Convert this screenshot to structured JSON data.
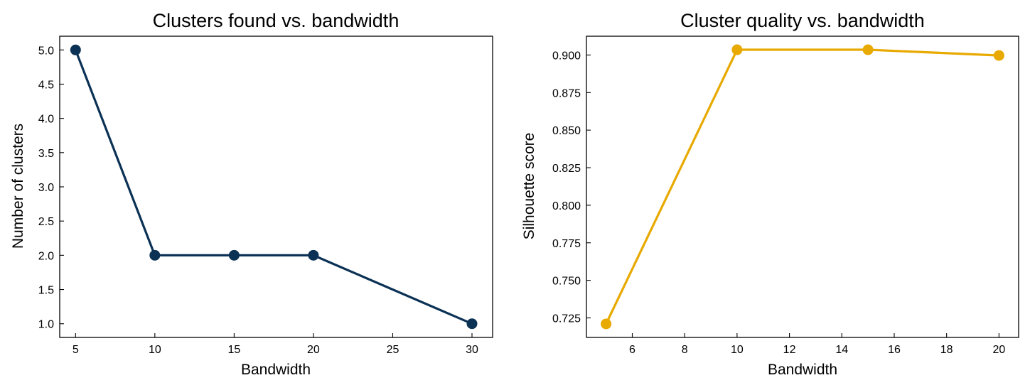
{
  "chart_data": [
    {
      "type": "line",
      "title": "Clusters found vs. bandwidth",
      "xlabel": "Bandwidth",
      "ylabel": "Number of clusters",
      "x": [
        5,
        10,
        15,
        20,
        30
      ],
      "series": [
        {
          "values": [
            5,
            2,
            2,
            2,
            1
          ],
          "color": "#0b3154",
          "marker": "circle"
        }
      ],
      "xlim": [
        4,
        31.3
      ],
      "ylim": [
        0.8,
        5.2
      ],
      "xticks": [
        5,
        10,
        15,
        20,
        25,
        30
      ],
      "xtick_labels": [
        "5",
        "10",
        "15",
        "20",
        "25",
        "30"
      ],
      "yticks": [
        1.0,
        1.5,
        2.0,
        2.5,
        3.0,
        3.5,
        4.0,
        4.5,
        5.0
      ],
      "ytick_labels": [
        "1.0",
        "1.5",
        "2.0",
        "2.5",
        "3.0",
        "3.5",
        "4.0",
        "4.5",
        "5.0"
      ],
      "grid": false,
      "legend": "none"
    },
    {
      "type": "line",
      "title": "Cluster quality vs. bandwidth",
      "xlabel": "Bandwidth",
      "ylabel": "Silhouette score",
      "x": [
        5,
        10,
        15,
        20
      ],
      "series": [
        {
          "values": [
            0.721,
            0.9035,
            0.9035,
            0.8997
          ],
          "color": "#e8a900",
          "marker": "circle"
        }
      ],
      "xlim": [
        4.25,
        20.75
      ],
      "ylim": [
        0.712,
        0.9125
      ],
      "xticks": [
        6,
        8,
        10,
        12,
        14,
        16,
        18,
        20
      ],
      "xtick_labels": [
        "6",
        "8",
        "10",
        "12",
        "14",
        "16",
        "18",
        "20"
      ],
      "yticks": [
        0.725,
        0.75,
        0.775,
        0.8,
        0.825,
        0.85,
        0.875,
        0.9
      ],
      "ytick_labels": [
        "0.725",
        "0.750",
        "0.775",
        "0.800",
        "0.825",
        "0.850",
        "0.875",
        "0.900"
      ],
      "grid": false,
      "legend": "none"
    }
  ]
}
